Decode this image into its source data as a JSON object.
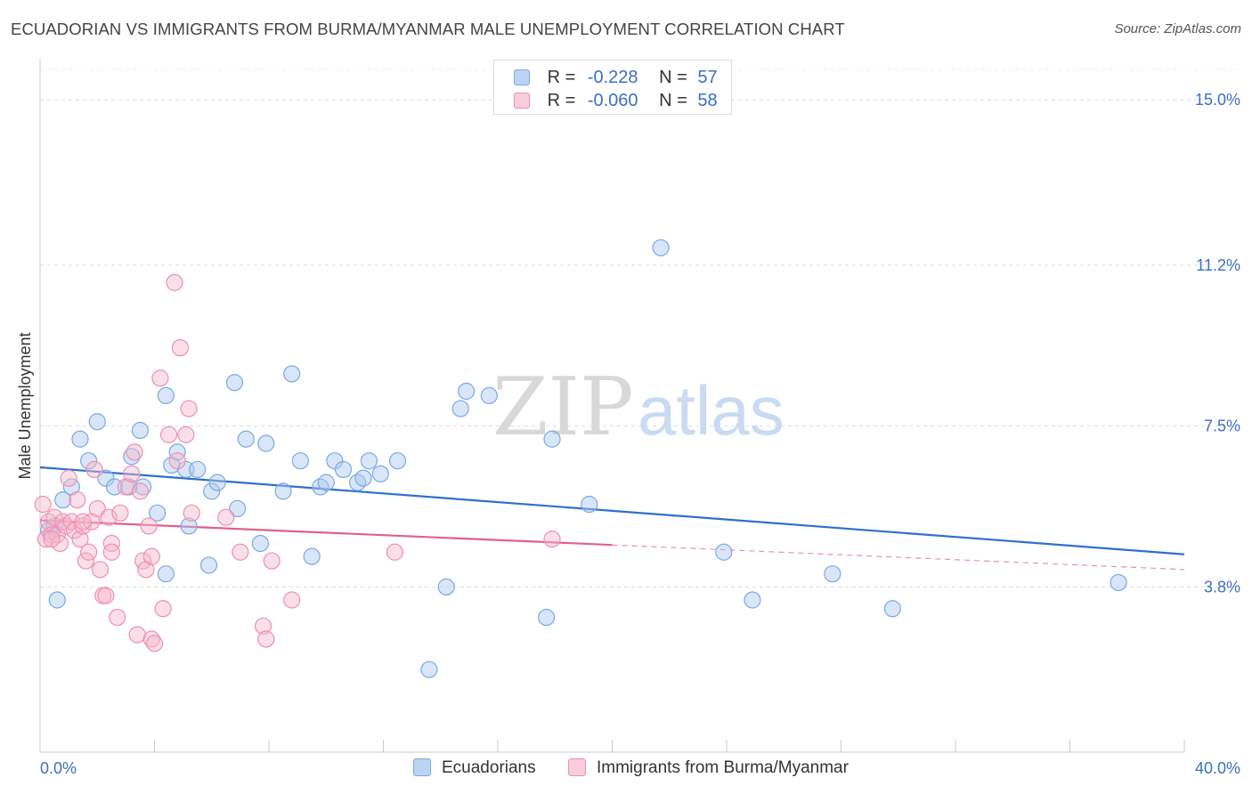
{
  "title": "ECUADORIAN VS IMMIGRANTS FROM BURMA/MYANMAR MALE UNEMPLOYMENT CORRELATION CHART",
  "source": "Source: ZipAtlas.com",
  "watermark": {
    "zip": "ZIP",
    "atlas": "atlas"
  },
  "legend_top": {
    "rows": [
      {
        "r_label": "R =",
        "r_value": "-0.228",
        "n_label": "N =",
        "n_value": "57",
        "color": "#a9c7f0"
      },
      {
        "r_label": "R =",
        "r_value": "-0.060",
        "n_label": "N =",
        "n_value": "58",
        "color": "#f5b8cb"
      }
    ]
  },
  "chart_data": {
    "type": "scatter",
    "title": "ECUADORIAN VS IMMIGRANTS FROM BURMA/MYANMAR MALE UNEMPLOYMENT CORRELATION CHART",
    "xlabel": "",
    "ylabel": "Male Unemployment",
    "xlim": [
      0,
      40
    ],
    "ylim": [
      0,
      15.7
    ],
    "x_tick_labels": [
      "0.0%",
      "40.0%"
    ],
    "y_ticks": [
      3.8,
      7.5,
      11.2,
      15.0
    ],
    "y_tick_labels": [
      "3.8%",
      "7.5%",
      "11.2%",
      "15.0%"
    ],
    "grid": "horizontal-dashed",
    "legend_position": "bottom",
    "series": [
      {
        "name": "Ecuadorians",
        "color": "#7aa8e6",
        "fill": "#a9c7f0",
        "line_color": "#2e6fcf",
        "trend": {
          "x0": 0,
          "y0": 6.55,
          "x1": 40,
          "y1": 4.55,
          "solid_to": 40
        },
        "x": [
          0.3,
          0.5,
          0.8,
          1.1,
          1.4,
          1.7,
          2.0,
          2.3,
          2.6,
          3.2,
          3.5,
          3.6,
          4.1,
          4.4,
          4.6,
          4.8,
          5.1,
          5.2,
          5.5,
          5.9,
          6.0,
          6.2,
          6.8,
          6.9,
          7.2,
          7.7,
          7.9,
          8.5,
          8.8,
          9.1,
          9.5,
          9.8,
          10.0,
          10.3,
          10.6,
          11.1,
          11.3,
          11.5,
          11.9,
          12.5,
          13.6,
          14.2,
          14.7,
          14.9,
          15.7,
          17.7,
          17.9,
          19.2,
          21.7,
          23.9,
          24.9,
          27.7,
          29.8,
          37.7,
          0.6,
          3.1,
          4.4
        ],
        "y": [
          5.1,
          5.2,
          5.8,
          6.1,
          7.2,
          6.7,
          7.6,
          6.3,
          6.1,
          6.8,
          7.4,
          6.1,
          5.5,
          8.2,
          6.6,
          6.9,
          6.5,
          5.2,
          6.5,
          4.3,
          6.0,
          6.2,
          8.5,
          5.6,
          7.2,
          4.8,
          7.1,
          6.0,
          8.7,
          6.7,
          4.5,
          6.1,
          6.2,
          6.7,
          6.5,
          6.2,
          6.3,
          6.7,
          6.4,
          6.7,
          1.9,
          3.8,
          7.9,
          8.3,
          8.2,
          3.1,
          7.2,
          5.7,
          11.6,
          4.6,
          3.5,
          4.1,
          3.3,
          3.9,
          3.5,
          6.1,
          4.1
        ]
      },
      {
        "name": "Immigrants from Burma/Myanmar",
        "color": "#ee8fae",
        "fill": "#f5b8cb",
        "line_color": "#e0608a",
        "trend": {
          "x0": 0,
          "y0": 5.33,
          "x1": 40,
          "y1": 4.2,
          "solid_to": 20
        },
        "x": [
          0.1,
          0.2,
          0.3,
          0.4,
          0.5,
          0.6,
          0.7,
          0.8,
          0.9,
          1.0,
          1.1,
          1.2,
          1.3,
          1.4,
          1.5,
          1.6,
          1.7,
          1.8,
          1.9,
          2.0,
          2.1,
          2.2,
          2.3,
          2.4,
          2.5,
          2.7,
          2.8,
          3.0,
          3.2,
          3.3,
          3.4,
          3.5,
          3.6,
          3.7,
          3.8,
          3.9,
          4.0,
          4.2,
          4.3,
          4.5,
          4.7,
          4.9,
          5.1,
          5.2,
          5.3,
          6.5,
          7.0,
          7.8,
          7.9,
          8.1,
          8.8,
          12.4,
          17.9,
          0.4,
          1.5,
          2.5,
          3.9,
          4.8
        ],
        "y": [
          5.7,
          4.9,
          5.3,
          5.0,
          5.4,
          5.0,
          4.8,
          5.3,
          5.2,
          6.3,
          5.3,
          5.1,
          5.8,
          4.9,
          5.2,
          4.4,
          4.6,
          5.3,
          6.5,
          5.6,
          4.2,
          3.6,
          3.6,
          5.4,
          4.8,
          3.1,
          5.5,
          6.1,
          6.4,
          6.9,
          2.7,
          6.0,
          4.4,
          4.2,
          5.2,
          2.6,
          2.5,
          8.6,
          3.3,
          7.3,
          10.8,
          9.3,
          7.3,
          7.9,
          5.5,
          5.4,
          4.6,
          2.9,
          2.6,
          4.4,
          3.5,
          4.6,
          4.9,
          4.9,
          5.3,
          4.6,
          4.5,
          6.7
        ]
      }
    ]
  },
  "bottom_legend": [
    {
      "label": "Ecuadorians",
      "color": "#a9c7f0"
    },
    {
      "label": "Immigrants from Burma/Myanmar",
      "color": "#f5b8cb"
    }
  ]
}
